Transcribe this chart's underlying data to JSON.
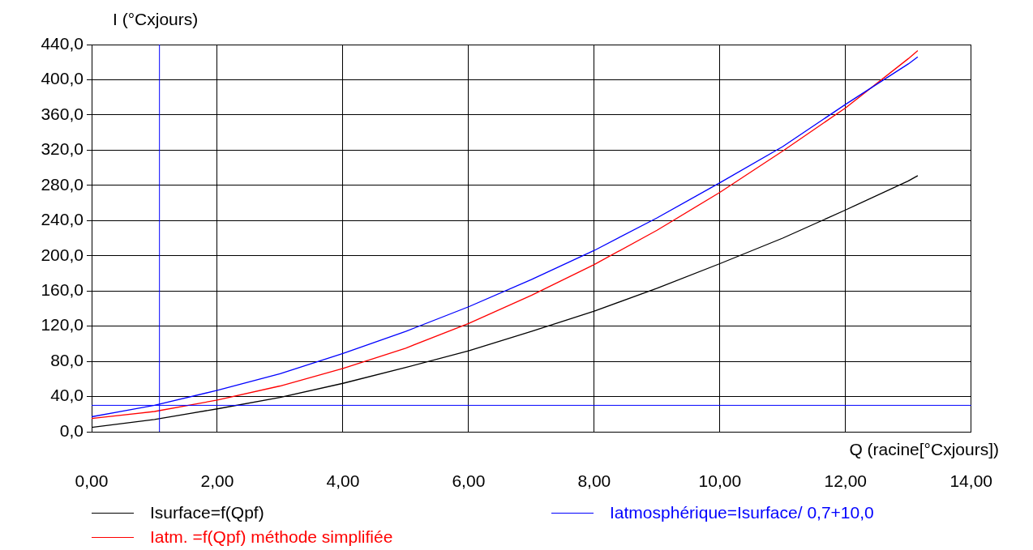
{
  "chart_data": {
    "type": "line",
    "xlabel": "Q (racine[°Cxjours])",
    "ylabel": "I (°Cxjours)",
    "xlim": [
      0,
      14
    ],
    "ylim": [
      0,
      440
    ],
    "xticks": [
      {
        "value": 0,
        "label": "0,00"
      },
      {
        "value": 2,
        "label": "2,00"
      },
      {
        "value": 4,
        "label": "4,00"
      },
      {
        "value": 6,
        "label": "6,00"
      },
      {
        "value": 8,
        "label": "8,00"
      },
      {
        "value": 10,
        "label": "10,00"
      },
      {
        "value": 12,
        "label": "12,00"
      },
      {
        "value": 14,
        "label": "14,00"
      }
    ],
    "yticks": [
      {
        "value": 0,
        "label": "0,0"
      },
      {
        "value": 40,
        "label": "40,0"
      },
      {
        "value": 80,
        "label": "80,0"
      },
      {
        "value": 120,
        "label": "120,0"
      },
      {
        "value": 160,
        "label": "160,0"
      },
      {
        "value": 200,
        "label": "200,0"
      },
      {
        "value": 240,
        "label": "240,0"
      },
      {
        "value": 280,
        "label": "280,0"
      },
      {
        "value": 320,
        "label": "320,0"
      },
      {
        "value": 360,
        "label": "360,0"
      },
      {
        "value": 400,
        "label": "400,0"
      },
      {
        "value": 440,
        "label": "440,0"
      }
    ],
    "x": [
      0,
      1,
      2,
      3,
      4,
      5,
      6,
      7,
      8,
      9,
      10,
      11,
      12,
      13,
      13.15
    ],
    "series": [
      {
        "name": "Isurface=f(Qpf)",
        "color": "#000000",
        "values": [
          5,
          14,
          26,
          39,
          55,
          73,
          92,
          114,
          137,
          163,
          191,
          220,
          252,
          285,
          291
        ]
      },
      {
        "name": "Iatmosphérique=Isurface/ 0,7+10,0",
        "color": "#0000ff",
        "values": [
          17,
          30,
          47,
          66,
          89,
          114,
          142,
          173,
          206,
          243,
          283,
          324,
          372,
          418,
          426
        ]
      },
      {
        "name": "Iatm. =f(Qpf) méthode simplifiée",
        "color": "#ff0000",
        "values": [
          15,
          23,
          36,
          52,
          72,
          95,
          123,
          155,
          190,
          229,
          272,
          319,
          368,
          424,
          433
        ]
      }
    ],
    "ref_lines": [
      {
        "axis": "x",
        "value": 1.08,
        "color": "#0000ff"
      },
      {
        "axis": "y",
        "value": 30,
        "color": "#0000ff"
      }
    ],
    "grid": true,
    "legend": "bottom",
    "marker": "none",
    "line_style": "solid"
  }
}
